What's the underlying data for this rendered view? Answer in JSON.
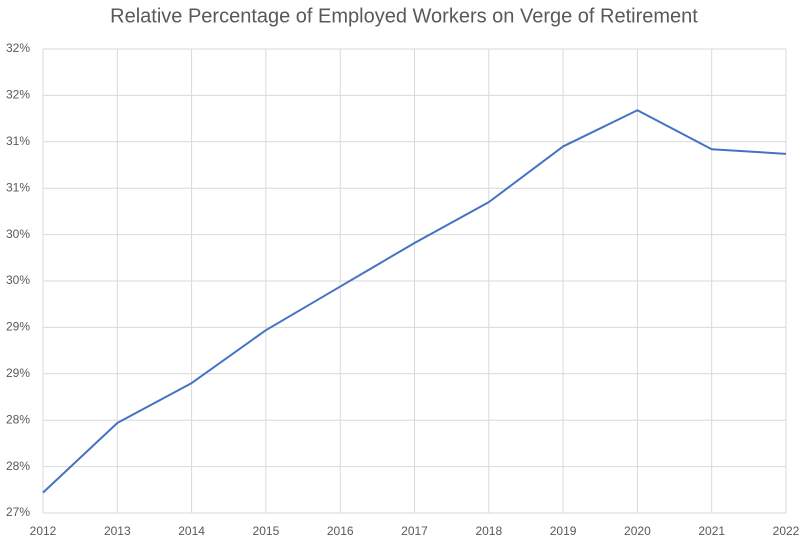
{
  "chart_data": {
    "type": "line",
    "title": "Relative Percentage of Employed Workers on Verge of Retirement",
    "x": [
      2012,
      2013,
      2014,
      2015,
      2016,
      2017,
      2018,
      2019,
      2020,
      2021,
      2022
    ],
    "series": [
      {
        "name": "Relative Percentage",
        "color": "#4472c4",
        "values": [
          27.22,
          27.97,
          28.4,
          28.97,
          29.44,
          29.91,
          30.35,
          30.95,
          31.34,
          30.92,
          30.87
        ]
      }
    ],
    "xlim": [
      2012,
      2022
    ],
    "xticks": [
      2012,
      2013,
      2014,
      2015,
      2016,
      2017,
      2018,
      2019,
      2020,
      2021,
      2022
    ],
    "ylim": [
      27,
      32
    ],
    "yticks": [
      {
        "value": 27,
        "label": "27%"
      },
      {
        "value": 27.5,
        "label": "28%"
      },
      {
        "value": 28,
        "label": "28%"
      },
      {
        "value": 28.5,
        "label": "29%"
      },
      {
        "value": 29,
        "label": "29%"
      },
      {
        "value": 29.5,
        "label": "30%"
      },
      {
        "value": 30,
        "label": "30%"
      },
      {
        "value": 30.5,
        "label": "31%"
      },
      {
        "value": 31,
        "label": "31%"
      },
      {
        "value": 31.5,
        "label": "32%"
      },
      {
        "value": 32,
        "label": "32%"
      }
    ],
    "grid": true
  }
}
